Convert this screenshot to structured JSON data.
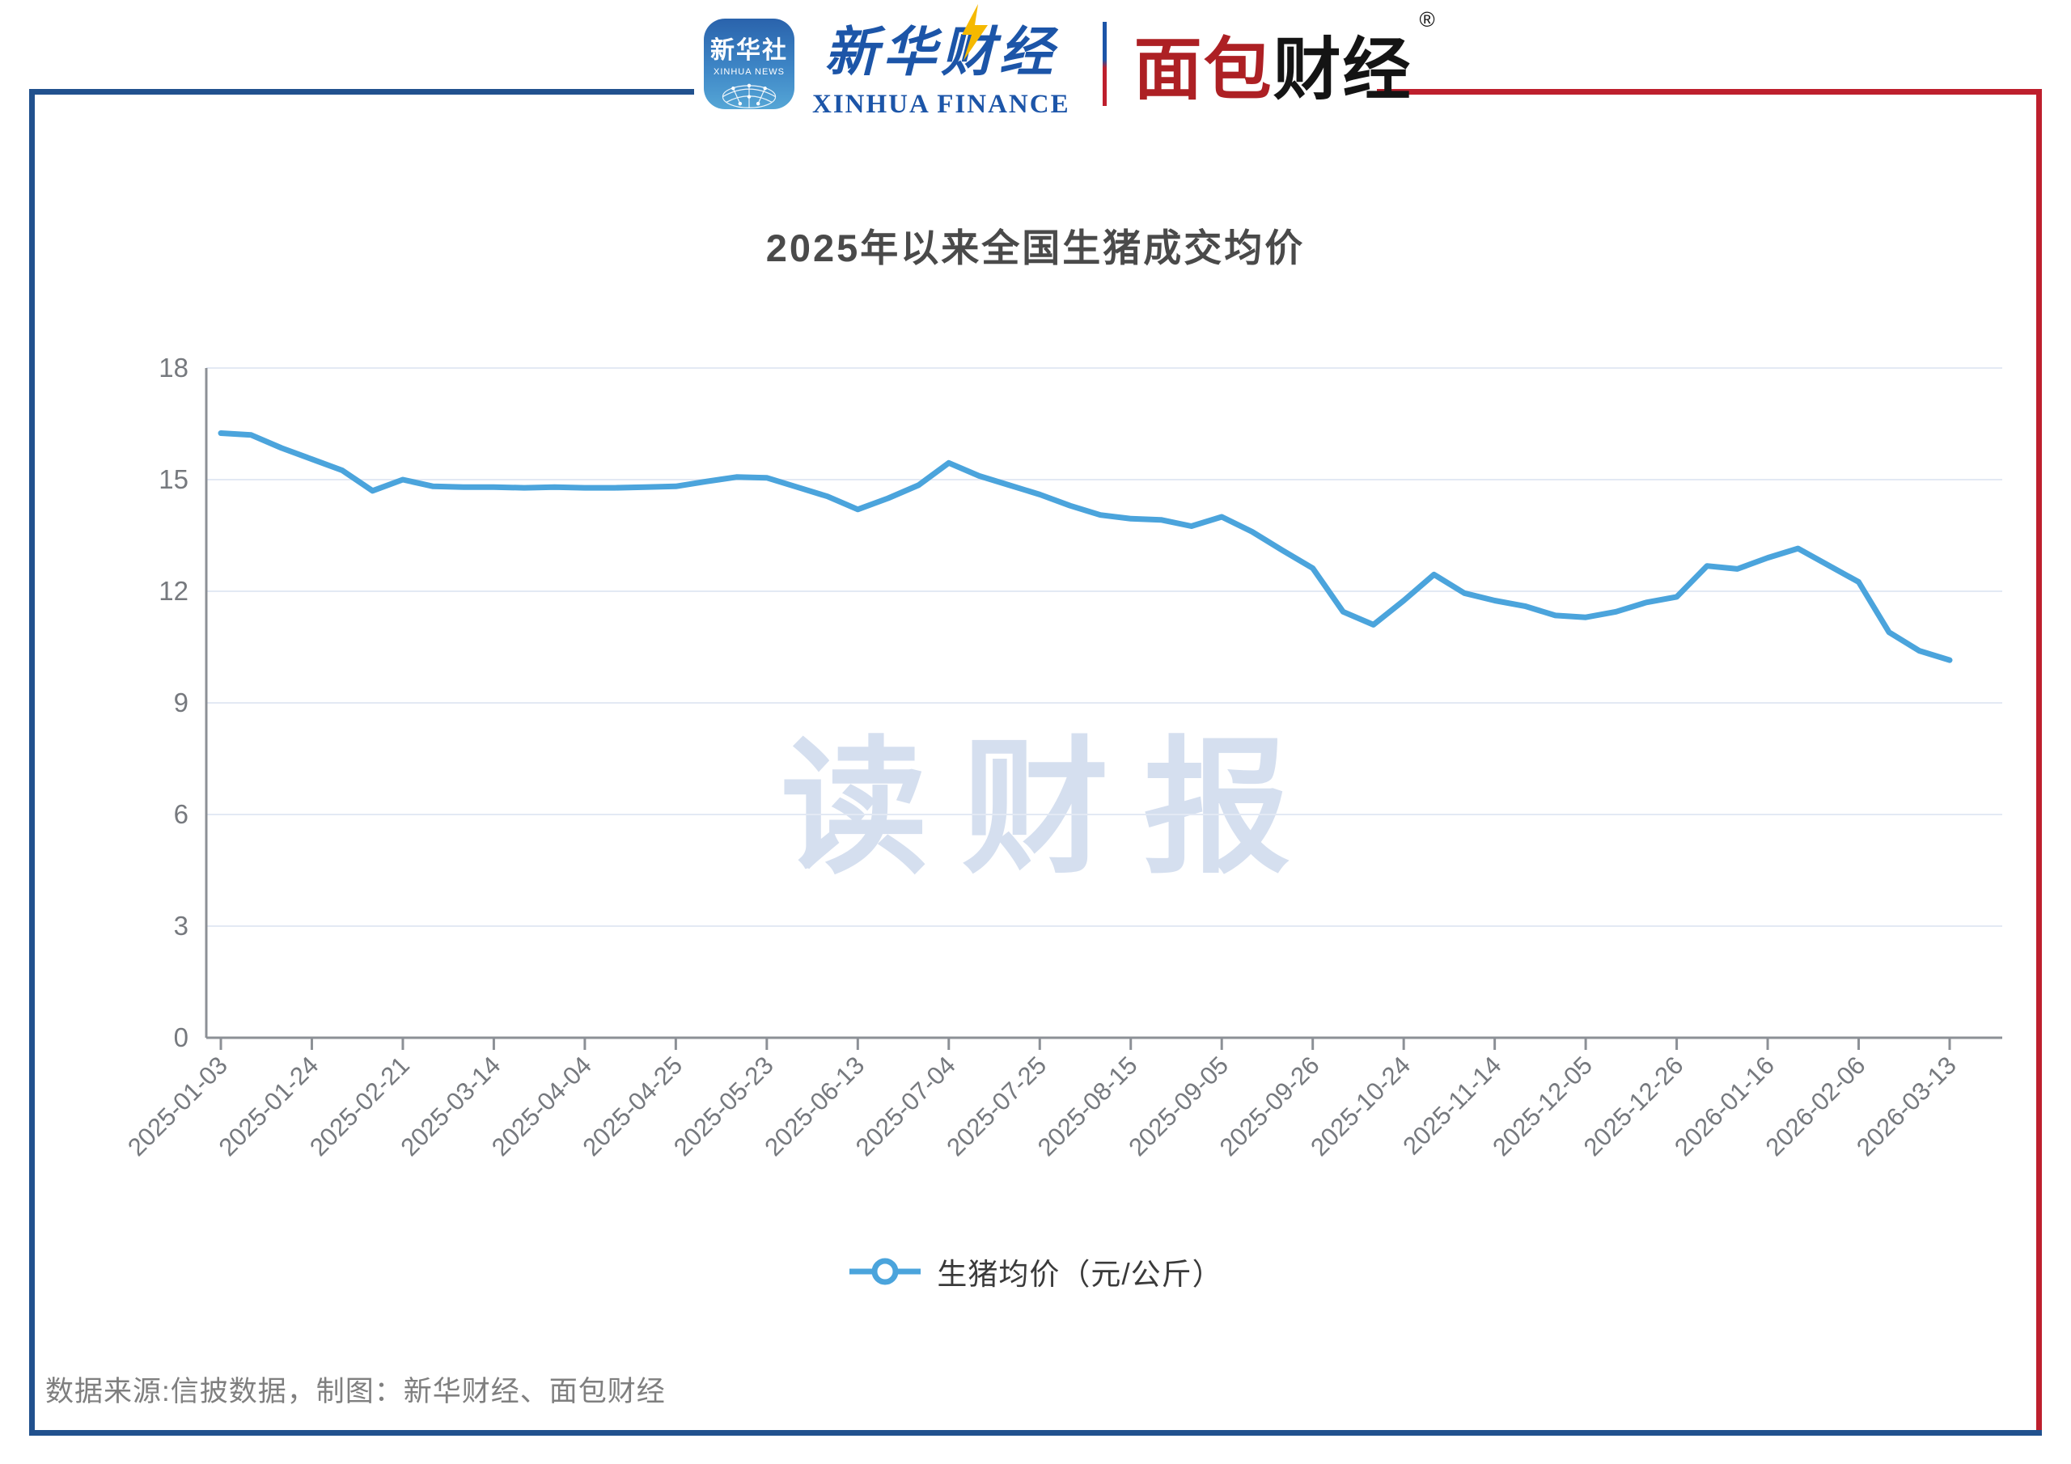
{
  "header": {
    "xinhua_app": {
      "line1": "新华社",
      "line2": "XINHUA NEWS"
    },
    "xinhua_finance": {
      "cn": "新华财经",
      "en": "XINHUA FINANCE"
    },
    "bread_finance": {
      "cn_red": "面包",
      "cn_black": "财经",
      "reg": "®"
    }
  },
  "title": "2025年以来全国生猪成交均价",
  "watermark": "读财报",
  "legend": {
    "label": "生猪均价（元/公斤）"
  },
  "footer": {
    "source": "数据来源:信披数据，制图：新华财经、面包财经"
  },
  "colors": {
    "line": "#4BA4DC",
    "grid": "#E3E9F4",
    "axis": "#8C9096",
    "axis_label": "#76797E",
    "frame_blue": "#21518E",
    "frame_red": "#BE1F2D",
    "title_text": "#4A4A4A",
    "watermark_text": "#D5DFEF",
    "footer_text": "#7F7F7F"
  },
  "chart_data": {
    "type": "line",
    "title": "2025年以来全国生猪成交均价",
    "series_name": "生猪均价（元/公斤）",
    "ylabel": "",
    "xlabel": "",
    "ylim": [
      0,
      18
    ],
    "y_ticks": [
      0,
      3,
      6,
      9,
      12,
      15,
      18
    ],
    "grid": "horizontal",
    "legend_position": "bottom",
    "x_label_every": 3,
    "x": [
      "2025-01-03",
      "2025-01-10",
      "2025-01-17",
      "2025-01-24",
      "2025-02-07",
      "2025-02-14",
      "2025-02-21",
      "2025-02-28",
      "2025-03-07",
      "2025-03-14",
      "2025-03-21",
      "2025-03-28",
      "2025-04-04",
      "2025-04-11",
      "2025-04-18",
      "2025-04-25",
      "2025-05-09",
      "2025-05-16",
      "2025-05-23",
      "2025-05-30",
      "2025-06-06",
      "2025-06-13",
      "2025-06-20",
      "2025-06-27",
      "2025-07-04",
      "2025-07-11",
      "2025-07-18",
      "2025-07-25",
      "2025-08-01",
      "2025-08-08",
      "2025-08-15",
      "2025-08-22",
      "2025-08-29",
      "2025-09-05",
      "2025-09-12",
      "2025-09-19",
      "2025-09-26",
      "2025-10-10",
      "2025-10-17",
      "2025-10-24",
      "2025-10-31",
      "2025-11-07",
      "2025-11-14",
      "2025-11-21",
      "2025-11-28",
      "2025-12-05",
      "2025-12-12",
      "2025-12-19",
      "2025-12-26",
      "2026-01-02",
      "2026-01-09",
      "2026-01-16",
      "2026-01-23",
      "2026-01-30",
      "2026-02-06",
      "2026-02-27",
      "2026-03-06",
      "2026-03-13"
    ],
    "values": [
      16.25,
      16.2,
      15.85,
      15.55,
      15.25,
      14.7,
      15.0,
      14.82,
      14.8,
      14.8,
      14.78,
      14.8,
      14.78,
      14.78,
      14.8,
      14.82,
      14.95,
      15.07,
      15.05,
      14.8,
      14.55,
      14.2,
      14.5,
      14.85,
      15.45,
      15.1,
      14.85,
      14.6,
      14.3,
      14.05,
      13.95,
      13.92,
      13.75,
      14.0,
      13.6,
      13.1,
      12.62,
      11.45,
      11.1,
      11.75,
      12.45,
      11.95,
      11.75,
      11.6,
      11.35,
      11.3,
      11.45,
      11.7,
      11.85,
      12.68,
      12.6,
      12.9,
      13.15,
      12.7,
      12.25,
      10.9,
      10.4,
      10.15
    ],
    "x_tick_labels": [
      "2025-01-03",
      "2025-01-24",
      "2025-02-21",
      "2025-03-14",
      "2025-04-04",
      "2025-04-25",
      "2025-05-23",
      "2025-06-13",
      "2025-07-04",
      "2025-07-25",
      "2025-08-15",
      "2025-09-05",
      "2025-09-26",
      "2025-10-24",
      "2025-11-14",
      "2025-12-05",
      "2025-12-26",
      "2026-01-16",
      "2026-02-06",
      "2026-03-13"
    ]
  }
}
